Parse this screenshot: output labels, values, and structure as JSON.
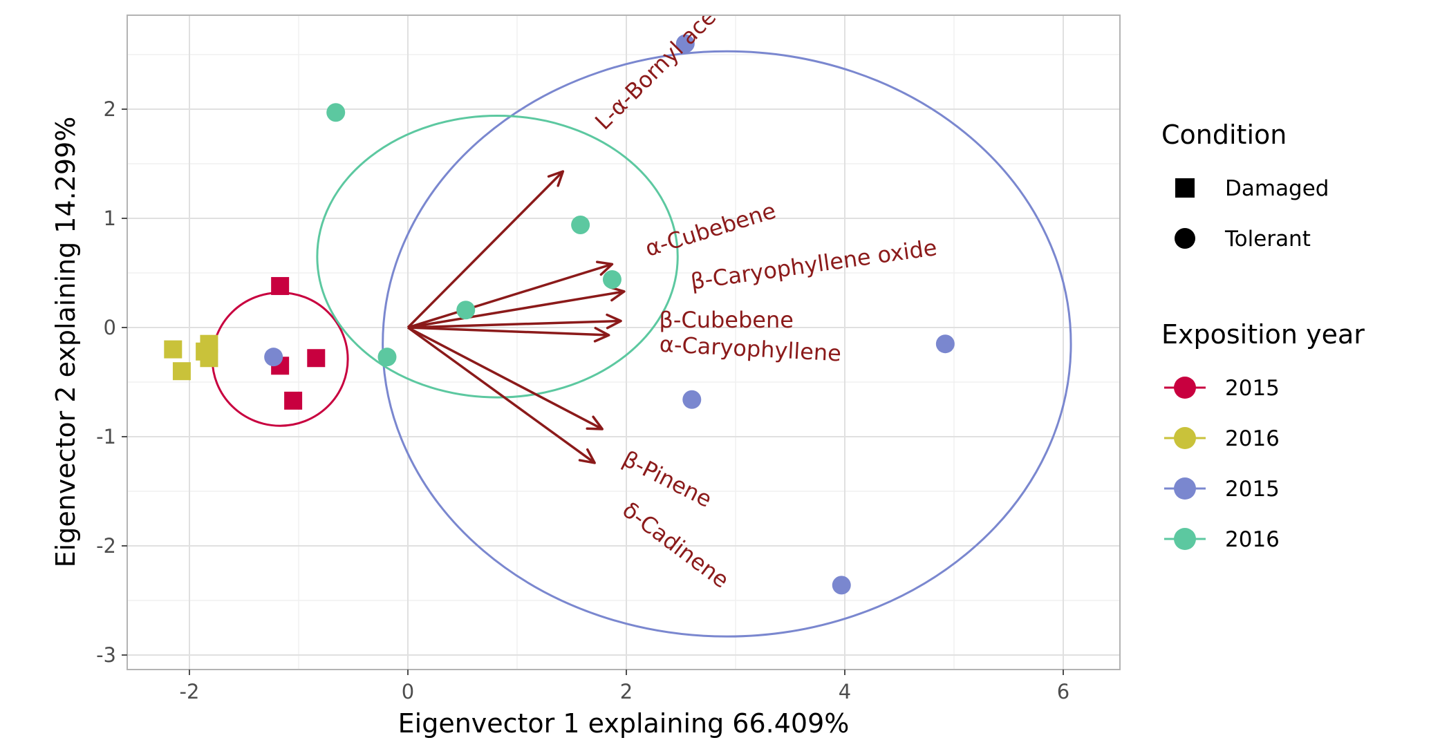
{
  "chart_data": {
    "type": "scatter",
    "title": "",
    "xlabel": "Eigenvector 1 explaining 66.409%",
    "ylabel": "Eigenvector 2 explaining 14.299%",
    "xlim": [
      -2.6,
      6.5
    ],
    "ylim": [
      -3.1,
      2.85
    ],
    "x_ticks": [
      "-2",
      "0",
      "2",
      "4",
      "6"
    ],
    "y_ticks": [
      "-3",
      "-2",
      "-1",
      "0",
      "1",
      "2"
    ],
    "grid": true,
    "legend_position": "right",
    "legends": [
      {
        "title": "Condition",
        "entries": [
          {
            "label": "Damaged",
            "shape": "square"
          },
          {
            "label": "Tolerant",
            "shape": "circle"
          }
        ]
      },
      {
        "title": "Exposition year",
        "entries": [
          {
            "label": "2015",
            "color": "#c8003f"
          },
          {
            "label": "2016",
            "color": "#c9c23a"
          },
          {
            "label": "2015",
            "color": "#7a87cf"
          },
          {
            "label": "2016",
            "color": "#5cc8a0"
          }
        ]
      }
    ],
    "groups": [
      {
        "condition": "Damaged",
        "year": "2015",
        "color": "#c8003f",
        "shape": "square",
        "points": [
          [
            -1.17,
            0.38
          ],
          [
            -1.17,
            -0.35
          ],
          [
            -0.84,
            -0.28
          ],
          [
            -1.05,
            -0.67
          ]
        ],
        "ellipse": {
          "center": [
            -1.17,
            -0.29
          ],
          "radius_x": 0.62,
          "radius_y": 0.61
        }
      },
      {
        "condition": "Damaged",
        "year": "2016",
        "color": "#c9c23a",
        "shape": "square",
        "points": [
          [
            -2.15,
            -0.2
          ],
          [
            -2.07,
            -0.4
          ],
          [
            -1.82,
            -0.15
          ],
          [
            -1.82,
            -0.28
          ],
          [
            -1.86,
            -0.22
          ]
        ]
      },
      {
        "condition": "Tolerant",
        "year": "2015",
        "color": "#7a87cf",
        "shape": "circle",
        "points": [
          [
            -1.23,
            -0.27
          ],
          [
            2.54,
            2.6
          ],
          [
            4.92,
            -0.15
          ],
          [
            2.6,
            -0.66
          ],
          [
            3.97,
            -2.36
          ]
        ],
        "ellipse": {
          "center": [
            2.92,
            -0.15
          ],
          "radius_x": 3.15,
          "radius_y": 2.68
        }
      },
      {
        "condition": "Tolerant",
        "year": "2016",
        "color": "#5cc8a0",
        "shape": "circle",
        "points": [
          [
            -0.66,
            1.97
          ],
          [
            1.58,
            0.94
          ],
          [
            1.87,
            0.44
          ],
          [
            0.53,
            0.16
          ],
          [
            -0.19,
            -0.27
          ]
        ],
        "ellipse": {
          "center": [
            0.82,
            0.65
          ],
          "radius_x": 1.65,
          "radius_y": 1.29
        }
      }
    ],
    "loadings": {
      "color": "#8b1a1a",
      "origin": [
        0,
        0
      ],
      "vectors": [
        {
          "label": "L-α-Bornyl acetate",
          "end": [
            1.42,
            1.43
          ],
          "label_at": [
            1.8,
            1.8
          ],
          "label_angle": -45
        },
        {
          "label": "α-Cubebene",
          "end": [
            1.87,
            0.58
          ],
          "label_at": [
            2.2,
            0.65
          ],
          "label_angle": -17
        },
        {
          "label": "β-Caryophyllene oxide",
          "end": [
            1.98,
            0.33
          ],
          "label_at": [
            2.6,
            0.35
          ],
          "label_angle": -8
        },
        {
          "label": "β-Cubebene",
          "end": [
            1.95,
            0.06
          ],
          "label_at": [
            2.3,
            0.0
          ],
          "label_angle": 0
        },
        {
          "label": "α-Caryophyllene",
          "end": [
            1.84,
            -0.07
          ],
          "label_at": [
            2.3,
            -0.22
          ],
          "label_angle": 3
        },
        {
          "label": "β-Pinene",
          "end": [
            1.78,
            -0.93
          ],
          "label_at": [
            1.95,
            -1.25
          ],
          "label_angle": 27
        },
        {
          "label": "δ-Cadinene",
          "end": [
            1.71,
            -1.24
          ],
          "label_at": [
            1.95,
            -1.7
          ],
          "label_angle": 37
        }
      ]
    }
  }
}
